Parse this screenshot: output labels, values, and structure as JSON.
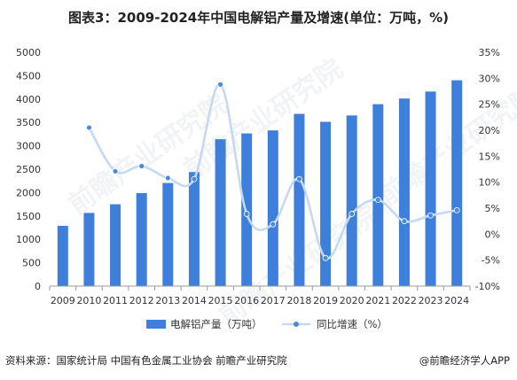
{
  "header": {
    "title": "图表3：2009-2024年中国电解铝产量及增速(单位：万吨，%)"
  },
  "footer": {
    "source": "资料来源：国家统计局 中国有色金属工业协会 前瞻产业研究院",
    "credit": "@前瞻经济学人APP"
  },
  "watermark": {
    "text": "前瞻产业研究院"
  },
  "chart_data": {
    "type": "bar",
    "categories": [
      "2009",
      "2010",
      "2011",
      "2012",
      "2013",
      "2014",
      "2015",
      "2016",
      "2017",
      "2018",
      "2019",
      "2020",
      "2021",
      "2022",
      "2023",
      "2024"
    ],
    "series": [
      {
        "name": "电解铝产量（万吨）",
        "type": "bar",
        "axis": "left",
        "color": "#3f7fdc",
        "values": [
          1289,
          1565,
          1750,
          1988,
          2205,
          2438,
          3141,
          3265,
          3329,
          3683,
          3513,
          3649,
          3890,
          4011,
          4160,
          4401
        ]
      },
      {
        "name": "同比增速（%）",
        "type": "line",
        "axis": "right",
        "color": "#c5d9f2",
        "marker_color": "#4a8ad8",
        "values": [
          null,
          20.5,
          12.1,
          13.1,
          10.8,
          10.6,
          28.8,
          3.9,
          1.9,
          10.6,
          -4.6,
          3.9,
          6.6,
          2.5,
          3.6,
          4.6
        ]
      }
    ],
    "y_left": {
      "min": 0,
      "max": 5000,
      "step": 500
    },
    "y_right": {
      "min": -10,
      "max": 35,
      "step": 5,
      "unit": "%"
    },
    "legend": {
      "position": "bottom"
    },
    "grid": false
  }
}
